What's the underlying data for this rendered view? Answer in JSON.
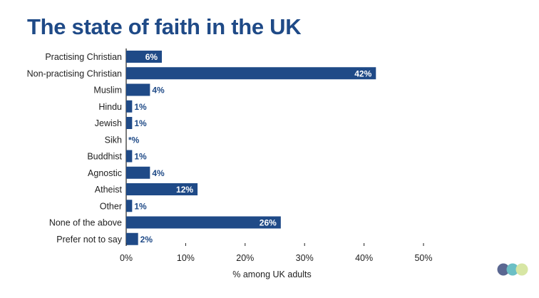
{
  "title": "The state of faith in the UK",
  "colors": {
    "bar": "#1f4a87",
    "text": "#1f1f1f",
    "axis": "#222222",
    "title": "#1f4a87"
  },
  "logo": {
    "dots": [
      "#5a6791",
      "#6bbfc5",
      "#d7e6a4"
    ]
  },
  "chart_data": {
    "type": "bar",
    "orientation": "horizontal",
    "categories": [
      "Practising Christian",
      "Non-practising Christian",
      "Muslim",
      "Hindu",
      "Jewish",
      "Sikh",
      "Buddhist",
      "Agnostic",
      "Atheist",
      "Other",
      "None of the above",
      "Prefer not to say"
    ],
    "values": [
      6,
      42,
      4,
      1,
      1,
      0,
      1,
      4,
      12,
      1,
      26,
      2
    ],
    "labels": [
      "6%",
      "42%",
      "4%",
      "1%",
      "1%",
      "*%",
      "1%",
      "4%",
      "12%",
      "1%",
      "26%",
      "2%"
    ],
    "xlabel": "% among UK adults",
    "ylabel": "",
    "xlim": [
      0,
      50
    ],
    "xticks": [
      0,
      10,
      20,
      30,
      40,
      50
    ],
    "xtick_labels": [
      "0%",
      "10%",
      "20%",
      "30%",
      "40%",
      "50%"
    ],
    "grid": false,
    "legend": "none"
  }
}
